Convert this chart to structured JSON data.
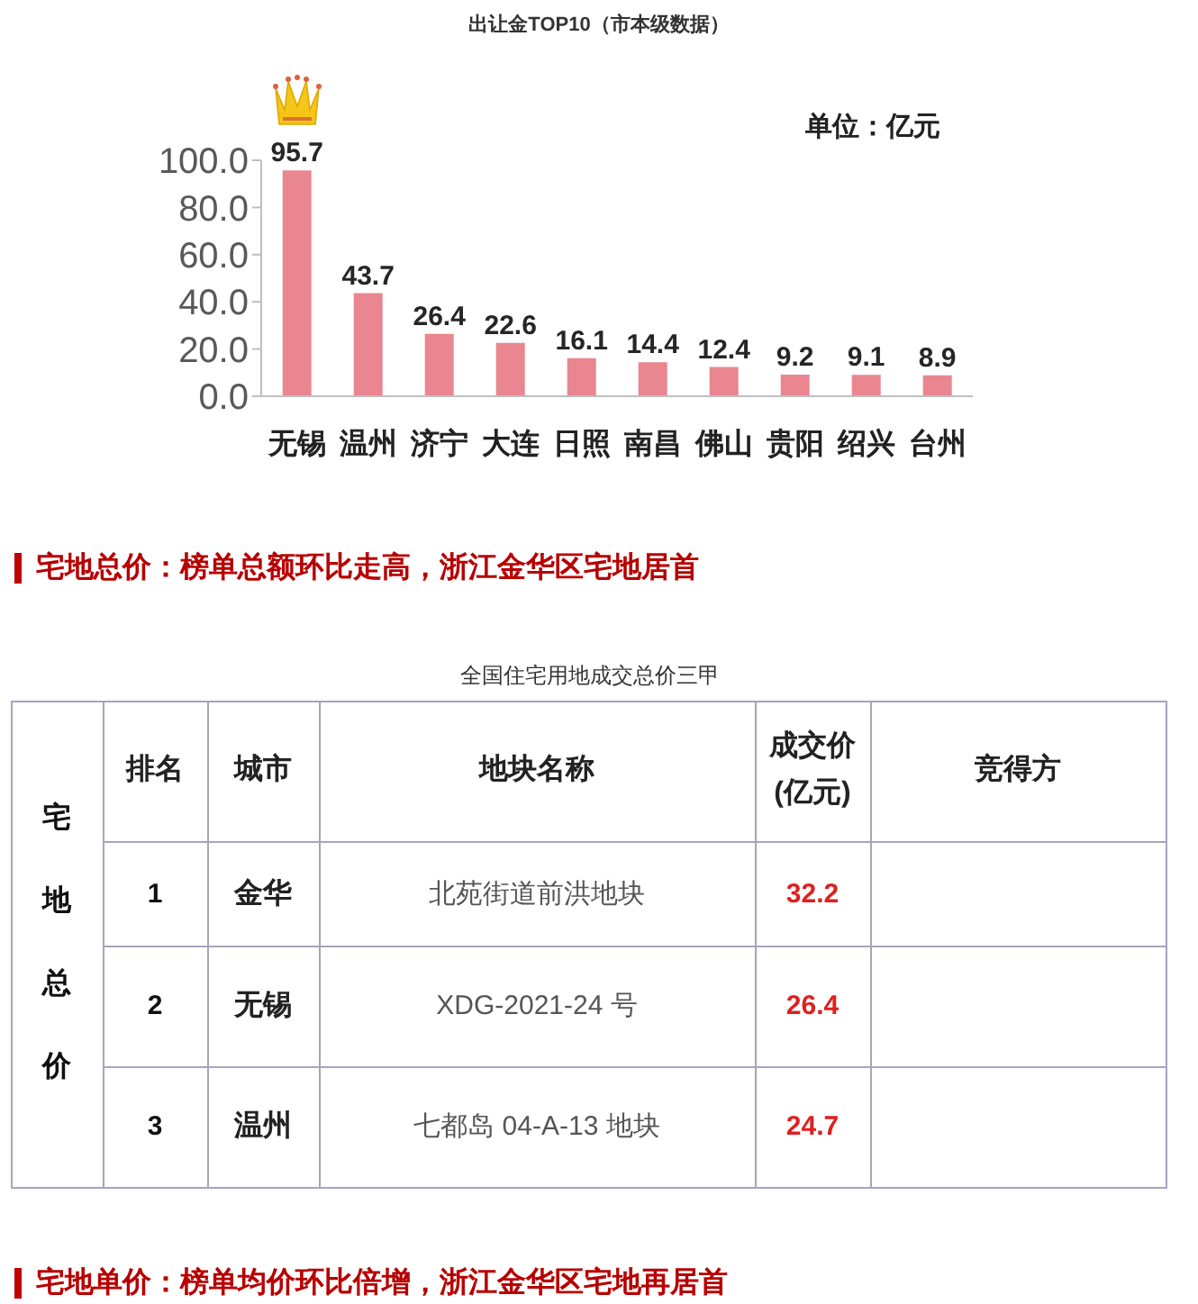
{
  "chart_data": [
    {
      "type": "bar",
      "title": "出让金TOP10（市本级数据）",
      "categories": [
        "无锡",
        "温州",
        "济宁",
        "大连",
        "日照",
        "南昌",
        "佛山",
        "贵阳",
        "绍兴",
        "台州"
      ],
      "values": [
        95.7,
        43.7,
        26.4,
        22.6,
        16.1,
        14.4,
        12.4,
        9.2,
        9.1,
        8.9
      ],
      "color": "#e98690",
      "ylim": [
        0,
        100
      ],
      "yticks": [
        {
          "value": 0,
          "label": "0.0"
        },
        {
          "value": 20,
          "label": "20.0"
        },
        {
          "value": 40,
          "label": "40.0"
        },
        {
          "value": 60,
          "label": "60.0"
        },
        {
          "value": 80,
          "label": "80.0"
        },
        {
          "value": 100,
          "label": "100.0"
        }
      ],
      "data_labels": true,
      "annotations": [
        "单位：亿元"
      ]
    },
    {
      "type": "other",
      "title": "全国住宅用地成交总价三甲",
      "annotations": [
        "宅地总价：榜单总额环比走高，浙江金华区宅地居首",
        "宅地总价",
        "排名",
        "城市",
        "地块名称",
        "成交价(亿元)",
        "竞得方",
        "1",
        "金华",
        "北苑街道前洪地块",
        "32.2",
        "2",
        "无锡",
        "XDG-2021-24 号",
        "26.4",
        "3",
        "温州",
        "七都岛 04-A-13 地块",
        "24.7",
        "宅地单价：榜单均价环比倍增，浙江金华区宅地再居首"
      ]
    }
  ]
}
